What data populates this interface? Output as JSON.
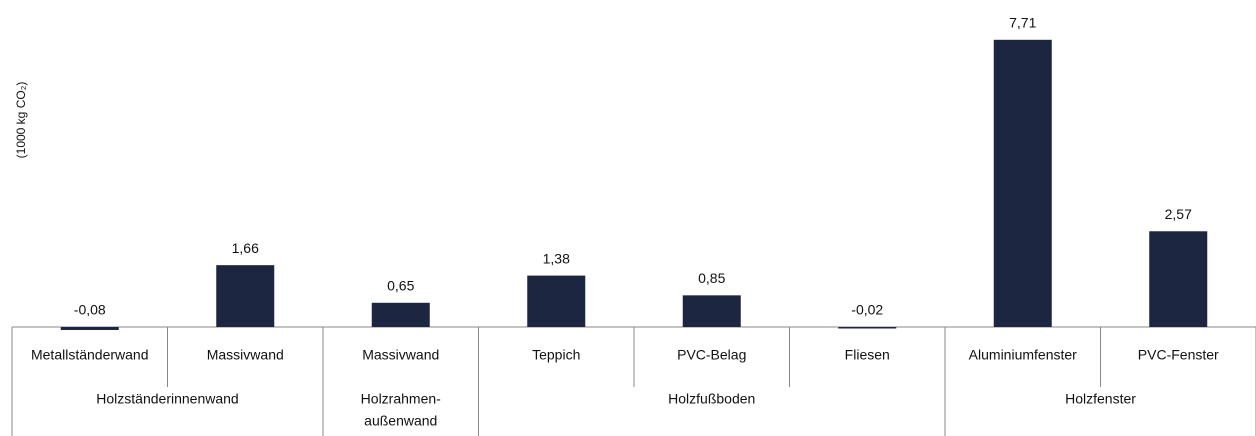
{
  "chart_data": {
    "type": "bar",
    "y_label": "(1000 kg CO₂)",
    "categories": [
      "Metallständerwand",
      "Massivwand",
      "Massivwand",
      "Teppich",
      "PVC-Belag",
      "Fliesen",
      "Aluminiumfenster",
      "PVC-Fenster"
    ],
    "values": [
      -0.08,
      1.66,
      0.65,
      1.38,
      0.85,
      -0.02,
      7.71,
      2.57
    ],
    "value_labels": [
      "-0,08",
      "1,66",
      "0,65",
      "1,38",
      "0,85",
      "-0,02",
      "7,71",
      "2,57"
    ],
    "groups": [
      {
        "lines": [
          "Holzständerinnenwand"
        ],
        "start": 0,
        "end": 1
      },
      {
        "lines": [
          "Holzrahmen-",
          "außenwand"
        ],
        "start": 2,
        "end": 2
      },
      {
        "lines": [
          "Holzfußboden"
        ],
        "start": 3,
        "end": 5
      },
      {
        "lines": [
          "Holzfenster"
        ],
        "start": 6,
        "end": 7
      }
    ],
    "color": "#1c2640",
    "ylim": [
      0,
      8
    ]
  }
}
